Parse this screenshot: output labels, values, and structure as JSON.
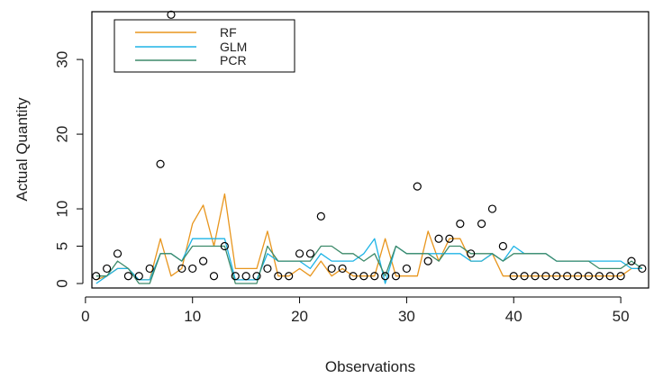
{
  "chart_data": {
    "type": "line",
    "xlabel": "Observations",
    "ylabel": "Actual Quantity",
    "xlim": [
      0.6,
      52.6
    ],
    "ylim": [
      -0.6,
      36.4
    ],
    "x_ticks": [
      0,
      10,
      20,
      30,
      40,
      50
    ],
    "y_ticks": [
      0,
      5,
      10,
      20,
      30
    ],
    "legend": {
      "placement": "top-left",
      "entries": [
        "RF",
        "GLM",
        "PCR"
      ]
    },
    "grid": false,
    "actual": {
      "marker": "open-circle",
      "x": [
        1,
        2,
        3,
        4,
        5,
        6,
        7,
        8,
        9,
        10,
        11,
        12,
        13,
        14,
        15,
        16,
        17,
        18,
        19,
        20,
        21,
        22,
        23,
        24,
        25,
        26,
        27,
        28,
        29,
        30,
        31,
        32,
        33,
        34,
        35,
        36,
        37,
        38,
        39,
        40,
        41,
        42,
        43,
        44,
        45,
        46,
        47,
        48,
        49,
        50,
        51,
        52
      ],
      "values": [
        1,
        2,
        4,
        1,
        1,
        2,
        16,
        36,
        2,
        2,
        3,
        1,
        5,
        1,
        1,
        1,
        2,
        1,
        1,
        4,
        4,
        9,
        2,
        2,
        1,
        1,
        1,
        1,
        1,
        2,
        13,
        3,
        6,
        6,
        8,
        4,
        8,
        10,
        5,
        1,
        1,
        1,
        1,
        1,
        1,
        1,
        1,
        1,
        1,
        1,
        3,
        2
      ]
    },
    "series": [
      {
        "name": "RF",
        "color": "#e8961e",
        "values": [
          0.5,
          1,
          2,
          2,
          0.5,
          0.5,
          6,
          1,
          2,
          8,
          10.5,
          5,
          12,
          2,
          2,
          2,
          7,
          1,
          1,
          2,
          1,
          3,
          1,
          2,
          1,
          1,
          1,
          6,
          1,
          1,
          1,
          7,
          3,
          6,
          6,
          3,
          3,
          4,
          1,
          1,
          1,
          1,
          1,
          1,
          1,
          1,
          1,
          1,
          1,
          1,
          2,
          2
        ]
      },
      {
        "name": "GLM",
        "color": "#1eb4e6",
        "values": [
          0,
          1,
          2,
          2,
          0.5,
          0.5,
          4,
          4,
          3,
          6,
          6,
          6,
          6,
          0.5,
          0.5,
          0.5,
          4,
          3,
          3,
          3,
          2,
          4,
          3,
          3,
          3,
          4,
          6,
          0,
          5,
          4,
          4,
          4,
          4,
          4,
          4,
          3,
          3,
          4,
          3,
          5,
          4,
          4,
          4,
          3,
          3,
          3,
          3,
          3,
          3,
          3,
          2,
          2
        ]
      },
      {
        "name": "PCR",
        "color": "#3d8a6a",
        "values": [
          1,
          1,
          3,
          2,
          0,
          0,
          4,
          4,
          3,
          5,
          5,
          5,
          5,
          0,
          0,
          0,
          5,
          3,
          3,
          3,
          3,
          5,
          5,
          4,
          4,
          3,
          4,
          1,
          5,
          4,
          4,
          4,
          3,
          5,
          5,
          4,
          4,
          4,
          3,
          4,
          4,
          4,
          4,
          3,
          3,
          3,
          3,
          2,
          2,
          2,
          3,
          2
        ]
      }
    ]
  }
}
